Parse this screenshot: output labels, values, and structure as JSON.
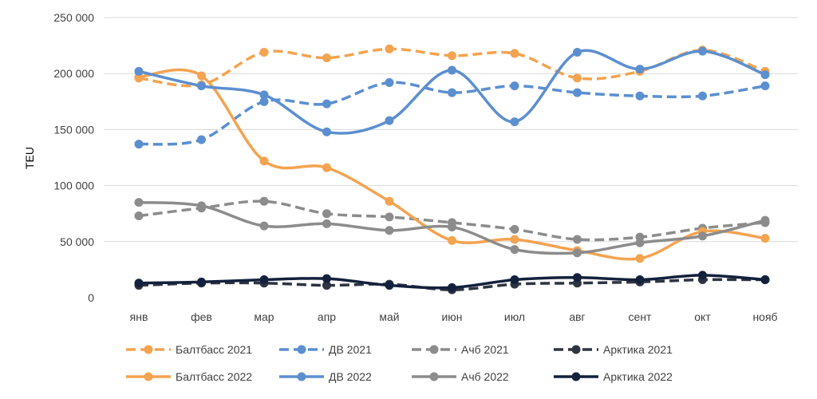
{
  "chart_data": {
    "type": "line",
    "title": "",
    "xlabel": "",
    "ylabel": "TEU",
    "ylim": [
      0,
      250000
    ],
    "yticks": [
      0,
      50000,
      100000,
      150000,
      200000,
      250000
    ],
    "ytick_labels": [
      "0",
      "50 000",
      "100 000",
      "150 000",
      "200 000",
      "250 000"
    ],
    "grid": true,
    "legend_position": "bottom",
    "categories": [
      "янв",
      "фев",
      "мар",
      "апр",
      "май",
      "июн",
      "июл",
      "авг",
      "сент",
      "окт",
      "нояб"
    ],
    "series": [
      {
        "name": "Балтбасс 2021",
        "color": "#F4A350",
        "dashed": true,
        "values": [
          196000,
          190000,
          219000,
          214000,
          222000,
          216000,
          218000,
          196000,
          202000,
          221000,
          202000
        ]
      },
      {
        "name": "ДВ 2021",
        "color": "#5B8FD0",
        "dashed": true,
        "values": [
          137000,
          141000,
          175000,
          173000,
          192000,
          183000,
          189000,
          183000,
          180000,
          180000,
          189000
        ]
      },
      {
        "name": "Ачб 2021",
        "color": "#8C8C8C",
        "dashed": true,
        "values": [
          73000,
          80000,
          86000,
          75000,
          72000,
          67000,
          61000,
          52000,
          54000,
          62000,
          67000
        ]
      },
      {
        "name": "Арктика 2021",
        "color": "#2E3440",
        "dashed": true,
        "values": [
          11000,
          13000,
          13000,
          11000,
          12000,
          7000,
          12000,
          13000,
          14000,
          16000,
          16000
        ]
      },
      {
        "name": "Балтбасс 2022",
        "color": "#F4A350",
        "dashed": false,
        "values": [
          197000,
          198000,
          122000,
          116000,
          86000,
          51000,
          52000,
          42000,
          35000,
          59000,
          53000
        ]
      },
      {
        "name": "ДВ 2022",
        "color": "#5B8FD0",
        "dashed": false,
        "values": [
          202000,
          189000,
          181000,
          148000,
          158000,
          203000,
          157000,
          219000,
          204000,
          220000,
          199000
        ]
      },
      {
        "name": "Ачб 2022",
        "color": "#8C8C8C",
        "dashed": false,
        "values": [
          85000,
          82000,
          64000,
          66000,
          60000,
          63000,
          43000,
          40000,
          49000,
          55000,
          69000
        ]
      },
      {
        "name": "Арктика 2022",
        "color": "#14213D",
        "dashed": false,
        "values": [
          13000,
          14000,
          16000,
          17000,
          11000,
          9000,
          16000,
          18000,
          16000,
          20000,
          16000
        ]
      }
    ]
  }
}
